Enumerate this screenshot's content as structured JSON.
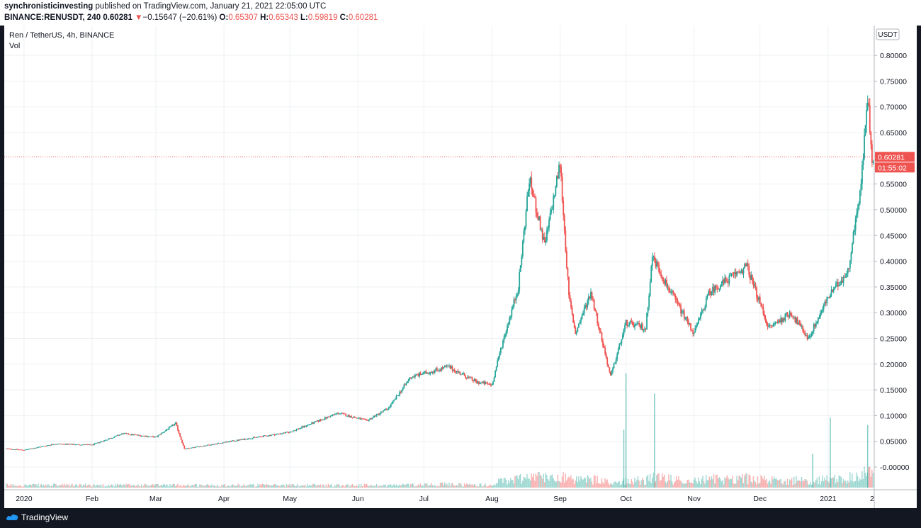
{
  "header": {
    "publisher": "synchronisticinvesting",
    "published_text": "published on TradingView.com, January 21, 2021 22:05:00 UTC",
    "symbol": "BINANCE:RENUSDT, 240",
    "last": "0.60281",
    "change_arrow": "▼",
    "change": "−0.15647 (−20.61%)",
    "o_label": "O:",
    "o": "0.65307",
    "h_label": "H:",
    "h": "0.65343",
    "l_label": "L:",
    "l": "0.59819",
    "c_label": "C:",
    "c": "0.60281"
  },
  "legend": {
    "title": "Ren / TetherUS, 4h, BINANCE",
    "volume": "Vol"
  },
  "price_tag": "0.60281",
  "countdown": "01:55:02",
  "currency": "USDT",
  "footer": {
    "brand": "TradingView"
  },
  "colors": {
    "up": "#26a69a",
    "down": "#ef5350",
    "background": "#131722",
    "grid": "#eef0f3"
  },
  "chart_data": {
    "type": "candlestick",
    "title": "Ren / TetherUS, 4h, BINANCE",
    "xlabel": "",
    "ylabel": "",
    "y_ticks": [
      "-0.00000",
      "0.05000",
      "0.10000",
      "0.15000",
      "0.20000",
      "0.25000",
      "0.30000",
      "0.35000",
      "0.40000",
      "0.45000",
      "0.50000",
      "0.55000",
      "0.65000",
      "0.70000",
      "0.75000",
      "0.80000"
    ],
    "y_top_label": "0",
    "ylim": [
      -0.044,
      0.858
    ],
    "x_ticks": [
      "2020",
      "Feb",
      "Mar",
      "Apr",
      "May",
      "Jun",
      "Jul",
      "Aug",
      "Sep",
      "Oct",
      "Nov",
      "Dec",
      "2021",
      "2"
    ],
    "x_tick_dates": [
      "2020-01-01",
      "2020-02-01",
      "2020-03-01",
      "2020-04-01",
      "2020-05-01",
      "2020-06-01",
      "2020-07-01",
      "2020-08-01",
      "2020-09-01",
      "2020-10-01",
      "2020-11-01",
      "2020-12-01",
      "2021-01-01",
      "2021-01-21"
    ],
    "xlim": [
      "2019-12-23",
      "2021-01-22"
    ],
    "price_path": [
      {
        "date": "2019-12-23",
        "price": 0.036
      },
      {
        "date": "2020-01-01",
        "price": 0.033
      },
      {
        "date": "2020-01-15",
        "price": 0.045
      },
      {
        "date": "2020-02-01",
        "price": 0.043
      },
      {
        "date": "2020-02-15",
        "price": 0.065
      },
      {
        "date": "2020-03-01",
        "price": 0.058
      },
      {
        "date": "2020-03-10",
        "price": 0.085
      },
      {
        "date": "2020-03-14",
        "price": 0.035
      },
      {
        "date": "2020-04-01",
        "price": 0.048
      },
      {
        "date": "2020-05-01",
        "price": 0.068
      },
      {
        "date": "2020-05-23",
        "price": 0.105
      },
      {
        "date": "2020-06-05",
        "price": 0.09
      },
      {
        "date": "2020-06-15",
        "price": 0.115
      },
      {
        "date": "2020-06-25",
        "price": 0.175
      },
      {
        "date": "2020-07-12",
        "price": 0.195
      },
      {
        "date": "2020-07-25",
        "price": 0.165
      },
      {
        "date": "2020-08-01",
        "price": 0.16
      },
      {
        "date": "2020-08-05",
        "price": 0.23
      },
      {
        "date": "2020-08-13",
        "price": 0.35
      },
      {
        "date": "2020-08-18",
        "price": 0.56
      },
      {
        "date": "2020-08-25",
        "price": 0.43
      },
      {
        "date": "2020-09-01",
        "price": 0.59
      },
      {
        "date": "2020-09-05",
        "price": 0.33
      },
      {
        "date": "2020-09-08",
        "price": 0.26
      },
      {
        "date": "2020-09-15",
        "price": 0.34
      },
      {
        "date": "2020-09-24",
        "price": 0.175
      },
      {
        "date": "2020-10-01",
        "price": 0.28
      },
      {
        "date": "2020-10-10",
        "price": 0.27
      },
      {
        "date": "2020-10-13",
        "price": 0.41
      },
      {
        "date": "2020-10-20",
        "price": 0.35
      },
      {
        "date": "2020-11-01",
        "price": 0.26
      },
      {
        "date": "2020-11-08",
        "price": 0.34
      },
      {
        "date": "2020-11-25",
        "price": 0.39
      },
      {
        "date": "2020-12-05",
        "price": 0.27
      },
      {
        "date": "2020-12-15",
        "price": 0.3
      },
      {
        "date": "2020-12-23",
        "price": 0.25
      },
      {
        "date": "2021-01-01",
        "price": 0.33
      },
      {
        "date": "2021-01-10",
        "price": 0.38
      },
      {
        "date": "2021-01-16",
        "price": 0.55
      },
      {
        "date": "2021-01-19",
        "price": 0.72
      },
      {
        "date": "2021-01-21",
        "price": 0.603
      }
    ],
    "volume_spikes": [
      {
        "date": "2020-10-01",
        "rel": 0.95
      },
      {
        "date": "2020-10-14",
        "rel": 0.78
      },
      {
        "date": "2021-01-02",
        "rel": 0.58
      },
      {
        "date": "2021-01-19",
        "rel": 0.52
      },
      {
        "date": "2020-09-30",
        "rel": 0.48
      },
      {
        "date": "2020-12-25",
        "rel": 0.28
      }
    ],
    "last_price": 0.60281
  }
}
